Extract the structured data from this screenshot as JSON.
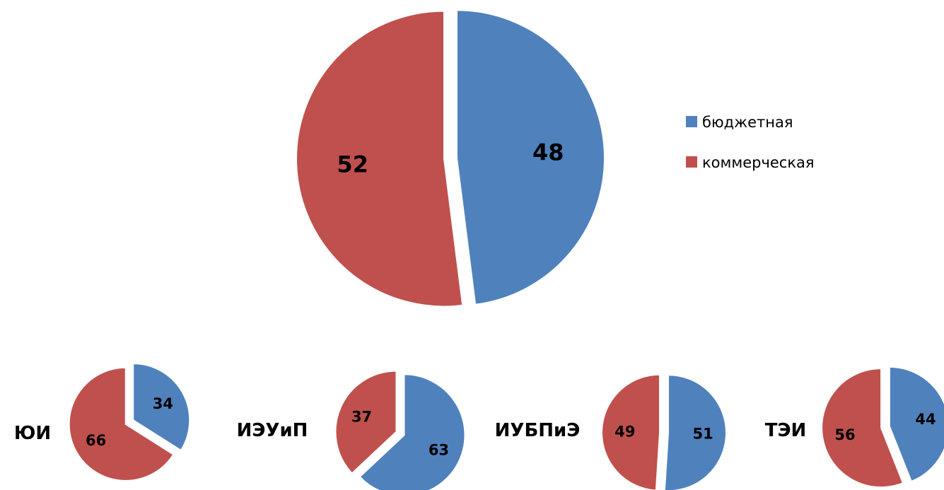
{
  "chart_data": [
    {
      "type": "pie",
      "title": "",
      "categories": [
        "бюджетная",
        "коммерческая"
      ],
      "values": [
        48,
        52
      ],
      "exploded": true,
      "legend": "right"
    },
    {
      "type": "pie",
      "title": "ЮИ",
      "categories": [
        "бюджетная",
        "коммерческая"
      ],
      "values": [
        34,
        66
      ],
      "exploded": true
    },
    {
      "type": "pie",
      "title": "ИЭУиП",
      "categories": [
        "бюджетная",
        "коммерческая"
      ],
      "values": [
        63,
        37
      ],
      "exploded": true
    },
    {
      "type": "pie",
      "title": "ИУБПиЭ",
      "categories": [
        "бюджетная",
        "коммерческая"
      ],
      "values": [
        51,
        49
      ],
      "exploded": true
    },
    {
      "type": "pie",
      "title": "ТЭИ",
      "categories": [
        "бюджетная",
        "коммерческая"
      ],
      "values": [
        44,
        56
      ],
      "exploded": true
    }
  ],
  "legend": {
    "items": [
      {
        "label": "бюджетная",
        "color": "#4F81BD"
      },
      {
        "label": "коммерческая",
        "color": "#C0504D"
      }
    ]
  },
  "colors": [
    "#4F81BD",
    "#C0504D"
  ]
}
